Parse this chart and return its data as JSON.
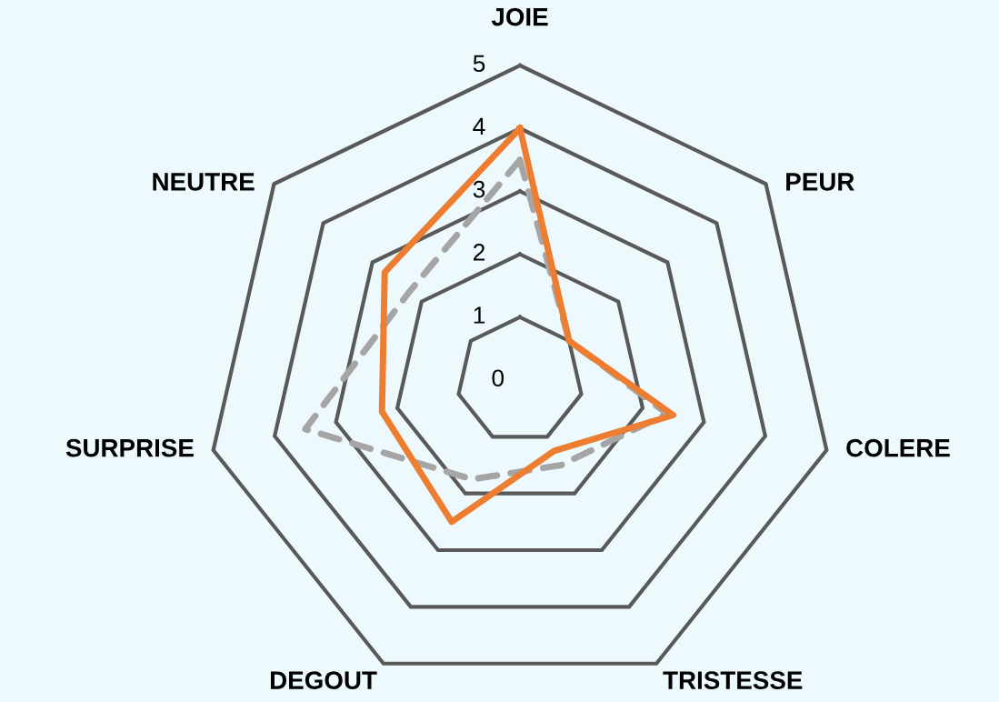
{
  "chart_data": {
    "type": "radar",
    "categories": [
      "JOIE",
      "PEUR",
      "COLERE",
      "TRISTESSE",
      "DEGOUT",
      "SURPRISE",
      "NEUTRE"
    ],
    "series": [
      {
        "color": "#a5a5a5",
        "line_style": "dashed",
        "values": [
          3.5,
          1.0,
          2.4,
          1.5,
          1.75,
          3.5,
          2.25
        ]
      },
      {
        "color": "#ed7d31",
        "line_style": "solid",
        "values": [
          4.0,
          1.0,
          2.5,
          1.25,
          2.5,
          2.25,
          2.75
        ]
      }
    ],
    "ylim": [
      0,
      5
    ],
    "yticks": [
      0,
      1,
      2,
      3,
      4,
      5
    ],
    "grid": true,
    "marker": "none"
  }
}
